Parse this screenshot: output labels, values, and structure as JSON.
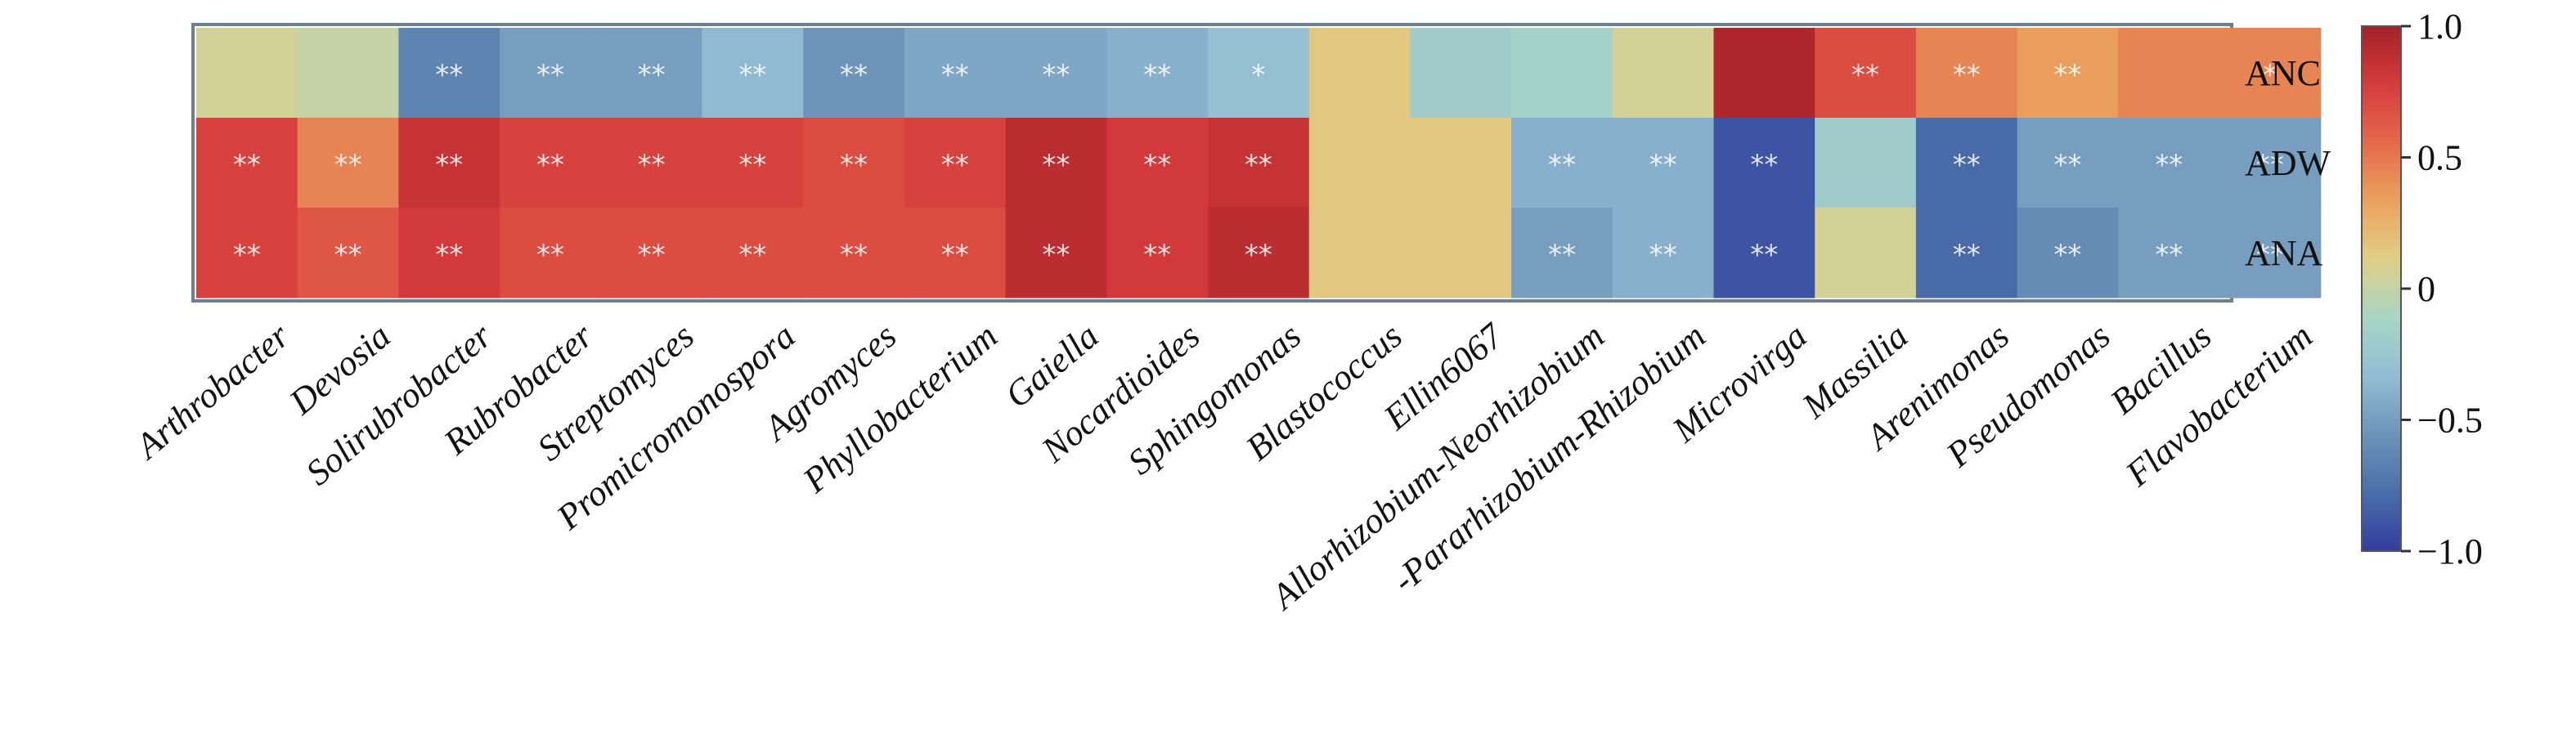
{
  "chart_data": {
    "type": "heatmap",
    "title": "",
    "xlabel": "",
    "ylabel": "",
    "rows": [
      "ANC",
      "ADW",
      "ANA"
    ],
    "columns": [
      "Arthrobacter",
      "Devosia",
      "Solirubrobacter",
      "Rubrobacter",
      "Streptomyces",
      "Promicromonospora",
      "Agromyces",
      "Phyllobacterium",
      "Gaiella",
      "Nocardioides",
      "Sphingomonas",
      "Blastococcus",
      "Ellin6067",
      "Allorhizobium-Neorhizobium",
      "-Pararhizobium-Rhizobium",
      "Microvirga",
      "Massilia",
      "Arenimonas",
      "Pseudomonas",
      "Bacillus",
      "Flavobacterium"
    ],
    "values": [
      [
        0.05,
        0.0,
        -0.65,
        -0.5,
        -0.5,
        -0.35,
        -0.55,
        -0.45,
        -0.45,
        -0.4,
        -0.3,
        0.15,
        -0.2,
        -0.15,
        0.05,
        0.95,
        0.7,
        0.45,
        0.35,
        0.45,
        0.45
      ],
      [
        0.75,
        0.45,
        0.85,
        0.75,
        0.75,
        0.75,
        0.7,
        0.75,
        0.9,
        0.8,
        0.85,
        0.15,
        0.15,
        -0.4,
        -0.4,
        -0.9,
        -0.2,
        -0.8,
        -0.5,
        -0.5,
        -0.5
      ],
      [
        0.75,
        0.65,
        0.8,
        0.7,
        0.7,
        0.7,
        0.7,
        0.7,
        0.9,
        0.8,
        0.9,
        0.15,
        0.15,
        -0.5,
        -0.4,
        -0.9,
        0.05,
        -0.8,
        -0.6,
        -0.5,
        -0.5
      ]
    ],
    "significance": [
      [
        "",
        "",
        "**",
        "**",
        "**",
        "**",
        "**",
        "**",
        "**",
        "**",
        "*",
        "",
        "",
        "",
        "",
        "",
        "**",
        "**",
        "**",
        "",
        "*"
      ],
      [
        "**",
        "**",
        "**",
        "**",
        "**",
        "**",
        "**",
        "**",
        "**",
        "**",
        "**",
        "",
        "",
        "**",
        "**",
        "**",
        "",
        "**",
        "**",
        "**",
        "**"
      ],
      [
        "**",
        "**",
        "**",
        "**",
        "**",
        "**",
        "**",
        "**",
        "**",
        "**",
        "**",
        "",
        "",
        "**",
        "**",
        "**",
        "",
        "**",
        "**",
        "**",
        "**"
      ]
    ],
    "colorbar": {
      "range": [
        -1.0,
        1.0
      ],
      "tick_values": [
        1.0,
        0.5,
        0,
        -0.5,
        -1.0
      ],
      "tick_labels": [
        "1.0",
        "0.5",
        "0",
        "−0.5",
        "−1.0"
      ],
      "colors": [
        "#333ca0",
        "#4a6fa8",
        "#6d93b8",
        "#93bcd4",
        "#a8d5c4",
        "#e0cf88",
        "#eba25e",
        "#e4694a",
        "#d63c3c",
        "#a32127"
      ]
    },
    "grid": false,
    "legend": "right"
  }
}
